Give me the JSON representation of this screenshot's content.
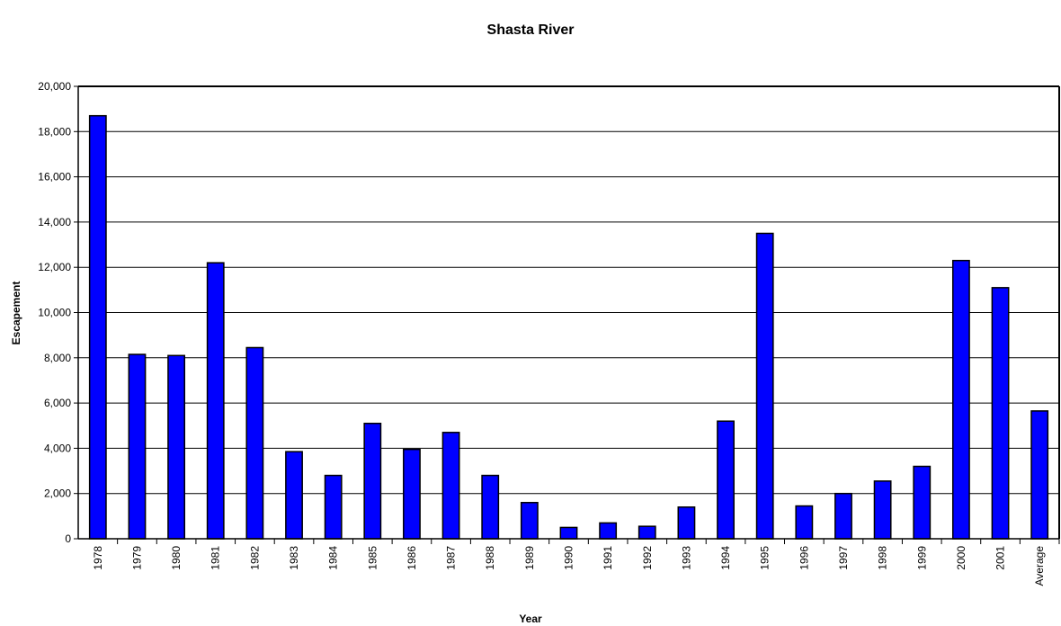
{
  "chart_data": {
    "type": "bar",
    "title": "Shasta River",
    "x_label": "Year",
    "y_label": "Escapement",
    "categories": [
      "1978",
      "1979",
      "1980",
      "1981",
      "1982",
      "1983",
      "1984",
      "1985",
      "1986",
      "1987",
      "1988",
      "1989",
      "1990",
      "1991",
      "1992",
      "1993",
      "1994",
      "1995",
      "1996",
      "1997",
      "1998",
      "1999",
      "2000",
      "2001",
      "Average"
    ],
    "values": [
      18700,
      8150,
      8100,
      12200,
      8450,
      3850,
      2800,
      5100,
      3950,
      4700,
      2800,
      1600,
      500,
      700,
      550,
      1400,
      5200,
      13500,
      1450,
      2000,
      2550,
      3200,
      12300,
      11100,
      5650
    ],
    "color": "#0000ff",
    "ylim": [
      0,
      20000
    ],
    "yticks": [
      0,
      {
        "value": 2000,
        "label": "2,000"
      },
      {
        "value": 4000,
        "label": "4,000"
      },
      {
        "value": 6000,
        "label": "6,000"
      },
      {
        "value": 8000,
        "label": "8,000"
      },
      {
        "value": 10000,
        "label": "10,000"
      },
      {
        "value": 12000,
        "label": "12,000"
      },
      {
        "value": 14000,
        "label": "14,000"
      },
      {
        "value": 16000,
        "label": "16,000"
      },
      {
        "value": 18000,
        "label": "18,000"
      },
      {
        "value": 20000,
        "label": "20,000"
      }
    ],
    "grid": true
  }
}
